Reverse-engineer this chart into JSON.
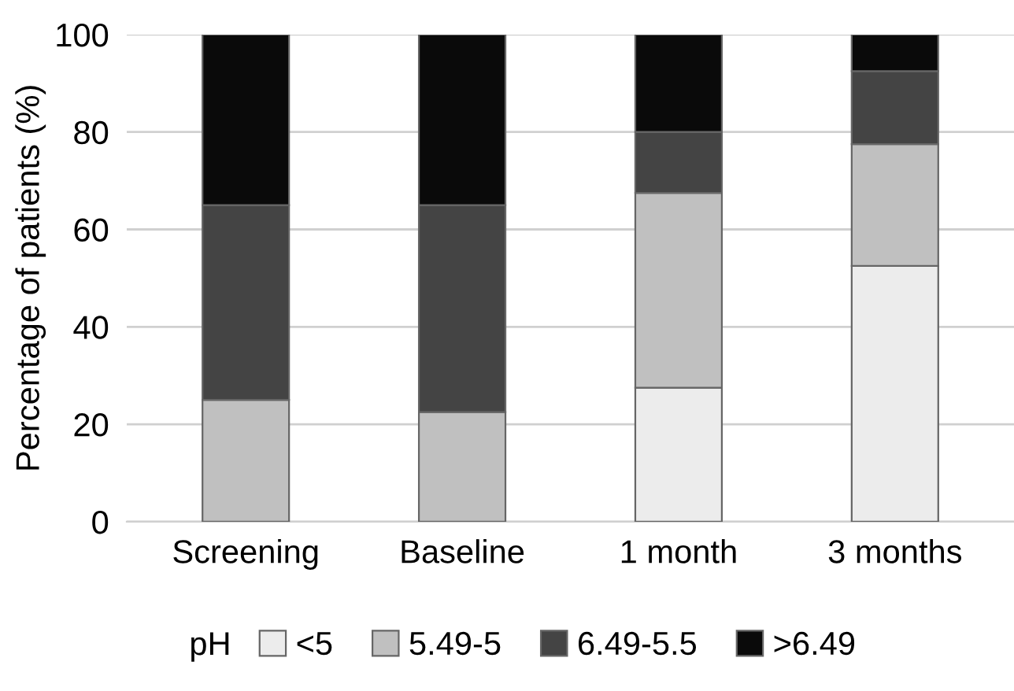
{
  "chart_data": {
    "type": "bar",
    "stacked": true,
    "ylabel": "Percentage of patients (%)",
    "legend_title": "pH",
    "categories": [
      "Screening",
      "Baseline",
      "1 month",
      "3 months"
    ],
    "series": [
      {
        "name": "<5",
        "color": "#ececec",
        "values": [
          0,
          0,
          27.5,
          52.5
        ]
      },
      {
        "name": "5.49-5",
        "color": "#c0c0c0",
        "values": [
          25,
          22.5,
          40,
          25
        ]
      },
      {
        "name": "6.49-5.5",
        "color": "#444444",
        "values": [
          40,
          42.5,
          12.5,
          15
        ]
      },
      {
        "name": ">6.49",
        "color": "#0a0a0a",
        "values": [
          35,
          35,
          20,
          7.5
        ]
      }
    ],
    "ylim": [
      0,
      100
    ],
    "yticks": [
      0,
      20,
      40,
      60,
      80,
      100
    ],
    "grid": "y",
    "legend": "bottom"
  }
}
